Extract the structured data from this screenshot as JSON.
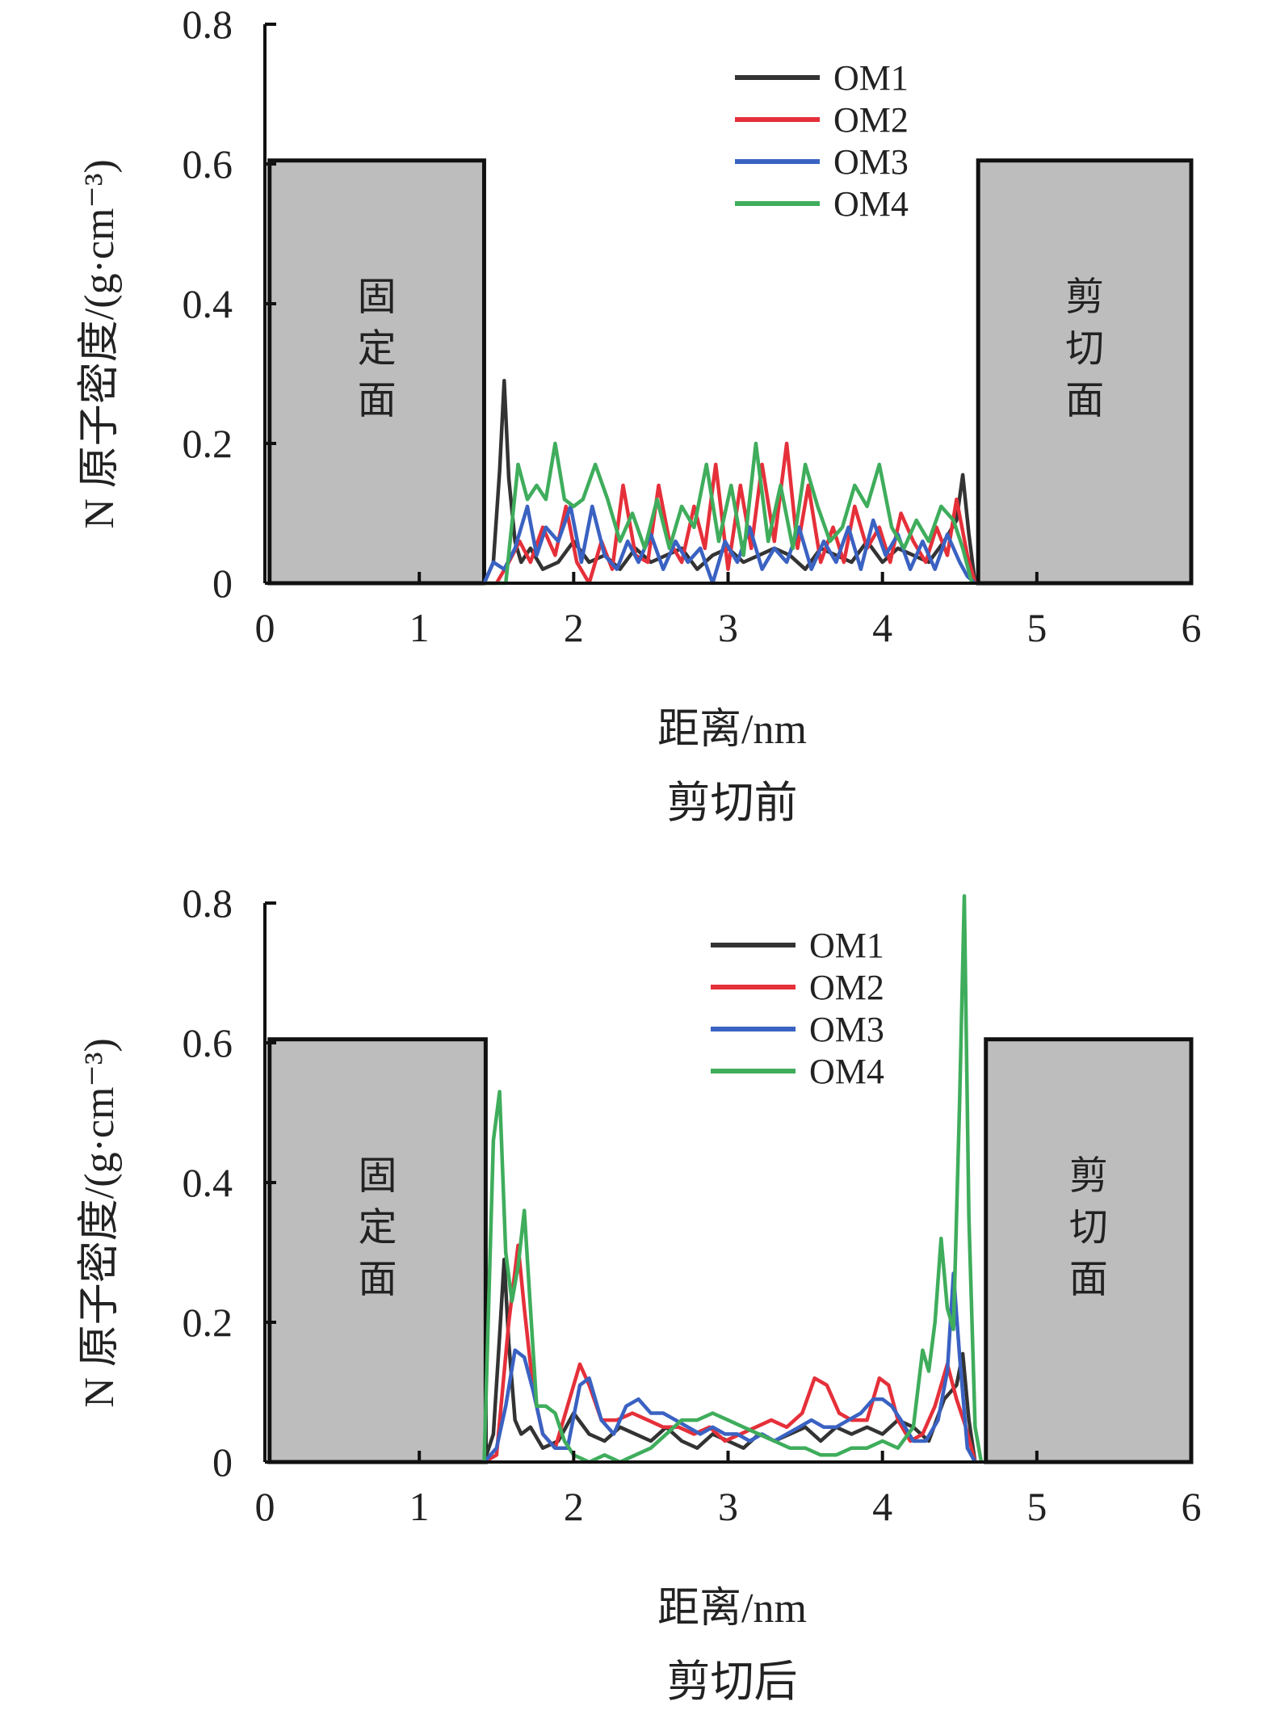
{
  "colors": {
    "OM1": "#333333",
    "OM2": "#e5303a",
    "OM3": "#3a62c2",
    "OM4": "#3fad5c",
    "region_fill": "#bdbdbd",
    "axis": "#111111"
  },
  "chart_data": [
    {
      "type": "line",
      "caption": "剪切前",
      "xlabel": "距离/nm",
      "ylabel": "N 原子密度/(g·cm⁻³)",
      "xlim": [
        0,
        6
      ],
      "ylim": [
        0,
        0.8
      ],
      "xticks": [
        "0",
        "1",
        "2",
        "3",
        "4",
        "5",
        "6"
      ],
      "yticks": [
        "0",
        "0.2",
        "0.4",
        "0.6",
        "0.8"
      ],
      "legend_position": "top-right",
      "regions": [
        {
          "label": "固定面",
          "x0": 0.03,
          "x1": 1.42,
          "top": 0.605
        },
        {
          "label": "剪切面",
          "x0": 4.62,
          "x1": 6.0,
          "top": 0.605
        }
      ],
      "series": [
        {
          "name": "OM1",
          "x": [
            1.42,
            1.48,
            1.52,
            1.55,
            1.58,
            1.62,
            1.66,
            1.72,
            1.8,
            1.9,
            2.0,
            2.1,
            2.2,
            2.3,
            2.4,
            2.5,
            2.6,
            2.7,
            2.8,
            2.9,
            3.0,
            3.1,
            3.2,
            3.3,
            3.4,
            3.5,
            3.6,
            3.7,
            3.8,
            3.9,
            4.0,
            4.1,
            4.2,
            4.3,
            4.4,
            4.48,
            4.52,
            4.56,
            4.6
          ],
          "y": [
            0,
            0.03,
            0.16,
            0.29,
            0.15,
            0.06,
            0.03,
            0.05,
            0.02,
            0.03,
            0.06,
            0.03,
            0.04,
            0.02,
            0.05,
            0.03,
            0.04,
            0.05,
            0.02,
            0.04,
            0.05,
            0.03,
            0.04,
            0.05,
            0.04,
            0.02,
            0.05,
            0.04,
            0.03,
            0.06,
            0.03,
            0.05,
            0.04,
            0.03,
            0.06,
            0.09,
            0.155,
            0.07,
            0
          ]
        },
        {
          "name": "OM2",
          "x": [
            1.42,
            1.5,
            1.58,
            1.65,
            1.72,
            1.8,
            1.88,
            1.95,
            2.02,
            2.1,
            2.18,
            2.25,
            2.32,
            2.4,
            2.48,
            2.55,
            2.62,
            2.7,
            2.78,
            2.85,
            2.92,
            3.0,
            3.08,
            3.15,
            3.22,
            3.3,
            3.38,
            3.45,
            3.52,
            3.6,
            3.68,
            3.75,
            3.82,
            3.9,
            3.98,
            4.05,
            4.12,
            4.2,
            4.28,
            4.35,
            4.42,
            4.48,
            4.55,
            4.6
          ],
          "y": [
            0,
            0,
            0.03,
            0.06,
            0.03,
            0.08,
            0.04,
            0.11,
            0.03,
            0.0,
            0.06,
            0.02,
            0.14,
            0.04,
            0.03,
            0.14,
            0.06,
            0.03,
            0.11,
            0.05,
            0.17,
            0.02,
            0.14,
            0.05,
            0.17,
            0.06,
            0.2,
            0.05,
            0.14,
            0.03,
            0.08,
            0.03,
            0.11,
            0.05,
            0.08,
            0.03,
            0.1,
            0.06,
            0.03,
            0.08,
            0.04,
            0.12,
            0.04,
            0
          ]
        },
        {
          "name": "OM3",
          "x": [
            1.42,
            1.48,
            1.55,
            1.62,
            1.7,
            1.76,
            1.82,
            1.9,
            1.98,
            2.05,
            2.12,
            2.2,
            2.28,
            2.35,
            2.42,
            2.5,
            2.58,
            2.66,
            2.74,
            2.82,
            2.9,
            2.98,
            3.06,
            3.14,
            3.22,
            3.3,
            3.38,
            3.46,
            3.54,
            3.62,
            3.7,
            3.78,
            3.86,
            3.94,
            4.02,
            4.1,
            4.18,
            4.26,
            4.34,
            4.42,
            4.5,
            4.55,
            4.6
          ],
          "y": [
            0,
            0.03,
            0.02,
            0.05,
            0.11,
            0.04,
            0.08,
            0.06,
            0.11,
            0.03,
            0.11,
            0.04,
            0.02,
            0.06,
            0.03,
            0.07,
            0.02,
            0.06,
            0.03,
            0.05,
            0.0,
            0.06,
            0.03,
            0.08,
            0.02,
            0.05,
            0.03,
            0.08,
            0.02,
            0.06,
            0.03,
            0.08,
            0.02,
            0.09,
            0.04,
            0.07,
            0.02,
            0.06,
            0.02,
            0.07,
            0.03,
            0.01,
            0
          ]
        },
        {
          "name": "OM4",
          "x": [
            1.42,
            1.56,
            1.64,
            1.7,
            1.76,
            1.82,
            1.88,
            1.94,
            2.0,
            2.06,
            2.14,
            2.22,
            2.3,
            2.38,
            2.46,
            2.54,
            2.62,
            2.7,
            2.78,
            2.86,
            2.94,
            3.02,
            3.1,
            3.18,
            3.26,
            3.34,
            3.42,
            3.5,
            3.58,
            3.66,
            3.74,
            3.82,
            3.9,
            3.98,
            4.06,
            4.14,
            4.22,
            4.3,
            4.38,
            4.46,
            4.52,
            4.58
          ],
          "y": [
            0,
            0.0,
            0.17,
            0.12,
            0.14,
            0.12,
            0.2,
            0.12,
            0.11,
            0.12,
            0.17,
            0.12,
            0.06,
            0.1,
            0.05,
            0.12,
            0.05,
            0.11,
            0.08,
            0.17,
            0.06,
            0.14,
            0.04,
            0.2,
            0.06,
            0.14,
            0.05,
            0.17,
            0.11,
            0.06,
            0.08,
            0.14,
            0.11,
            0.17,
            0.08,
            0.05,
            0.09,
            0.06,
            0.11,
            0.09,
            0.05,
            0
          ]
        }
      ]
    },
    {
      "type": "line",
      "caption": "剪切后",
      "xlabel": "距离/nm",
      "ylabel": "N 原子密度/(g·cm⁻³)",
      "xlim": [
        0,
        6
      ],
      "ylim": [
        0,
        0.8
      ],
      "xticks": [
        "0",
        "1",
        "2",
        "3",
        "4",
        "5",
        "6"
      ],
      "yticks": [
        "0",
        "0.2",
        "0.4",
        "0.6",
        "0.8"
      ],
      "legend_position": "top-right",
      "regions": [
        {
          "label": "固定面",
          "x0": 0.03,
          "x1": 1.43,
          "top": 0.605
        },
        {
          "label": "剪切面",
          "x0": 4.67,
          "x1": 6.0,
          "top": 0.605
        }
      ],
      "series": [
        {
          "name": "OM1",
          "x": [
            1.42,
            1.48,
            1.52,
            1.55,
            1.58,
            1.62,
            1.66,
            1.72,
            1.8,
            1.9,
            2.0,
            2.1,
            2.2,
            2.3,
            2.4,
            2.5,
            2.6,
            2.7,
            2.8,
            2.9,
            3.0,
            3.1,
            3.2,
            3.3,
            3.4,
            3.5,
            3.6,
            3.7,
            3.8,
            3.9,
            4.0,
            4.1,
            4.2,
            4.3,
            4.4,
            4.48,
            4.52,
            4.56,
            4.6
          ],
          "y": [
            0,
            0.04,
            0.18,
            0.29,
            0.17,
            0.06,
            0.04,
            0.05,
            0.02,
            0.03,
            0.07,
            0.04,
            0.03,
            0.05,
            0.04,
            0.03,
            0.05,
            0.03,
            0.02,
            0.04,
            0.03,
            0.02,
            0.04,
            0.03,
            0.04,
            0.05,
            0.03,
            0.05,
            0.04,
            0.05,
            0.04,
            0.06,
            0.05,
            0.03,
            0.09,
            0.11,
            0.155,
            0.06,
            0
          ]
        },
        {
          "name": "OM2",
          "x": [
            1.42,
            1.5,
            1.58,
            1.64,
            1.68,
            1.74,
            1.8,
            1.88,
            1.96,
            2.04,
            2.1,
            2.18,
            2.28,
            2.38,
            2.48,
            2.58,
            2.68,
            2.78,
            2.88,
            2.98,
            3.08,
            3.18,
            3.28,
            3.38,
            3.48,
            3.56,
            3.64,
            3.72,
            3.8,
            3.9,
            3.98,
            4.04,
            4.1,
            4.18,
            4.26,
            4.34,
            4.42,
            4.48,
            4.54,
            4.6
          ],
          "y": [
            0,
            0.01,
            0.2,
            0.31,
            0.22,
            0.1,
            0.04,
            0.02,
            0.08,
            0.14,
            0.11,
            0.06,
            0.06,
            0.07,
            0.06,
            0.05,
            0.05,
            0.04,
            0.05,
            0.03,
            0.04,
            0.05,
            0.06,
            0.05,
            0.07,
            0.12,
            0.11,
            0.07,
            0.06,
            0.06,
            0.12,
            0.11,
            0.06,
            0.03,
            0.04,
            0.08,
            0.14,
            0.09,
            0.05,
            0
          ]
        },
        {
          "name": "OM3",
          "x": [
            1.42,
            1.5,
            1.56,
            1.62,
            1.68,
            1.74,
            1.8,
            1.88,
            1.96,
            2.04,
            2.1,
            2.18,
            2.26,
            2.34,
            2.42,
            2.5,
            2.58,
            2.66,
            2.74,
            2.82,
            2.9,
            2.98,
            3.06,
            3.14,
            3.22,
            3.3,
            3.38,
            3.46,
            3.54,
            3.62,
            3.7,
            3.78,
            3.86,
            3.94,
            4.0,
            4.06,
            4.12,
            4.2,
            4.28,
            4.36,
            4.42,
            4.46,
            4.5,
            4.55,
            4.6
          ],
          "y": [
            0,
            0.02,
            0.08,
            0.16,
            0.15,
            0.1,
            0.04,
            0.02,
            0.02,
            0.11,
            0.12,
            0.06,
            0.04,
            0.08,
            0.09,
            0.07,
            0.07,
            0.06,
            0.05,
            0.04,
            0.05,
            0.04,
            0.04,
            0.03,
            0.04,
            0.03,
            0.04,
            0.05,
            0.06,
            0.05,
            0.05,
            0.06,
            0.07,
            0.09,
            0.09,
            0.08,
            0.06,
            0.03,
            0.03,
            0.06,
            0.13,
            0.27,
            0.15,
            0.02,
            0
          ]
        },
        {
          "name": "OM4",
          "x": [
            1.42,
            1.48,
            1.52,
            1.56,
            1.6,
            1.64,
            1.68,
            1.72,
            1.76,
            1.82,
            1.88,
            1.94,
            2.0,
            2.1,
            2.2,
            2.3,
            2.4,
            2.5,
            2.6,
            2.7,
            2.8,
            2.9,
            3.0,
            3.1,
            3.2,
            3.3,
            3.4,
            3.5,
            3.6,
            3.7,
            3.8,
            3.9,
            4.0,
            4.1,
            4.2,
            4.26,
            4.3,
            4.34,
            4.38,
            4.42,
            4.46,
            4.5,
            4.53,
            4.56,
            4.6,
            4.64
          ],
          "y": [
            0,
            0.46,
            0.53,
            0.3,
            0.23,
            0.28,
            0.36,
            0.22,
            0.08,
            0.08,
            0.07,
            0.03,
            0.01,
            0.0,
            0.01,
            0.0,
            0.01,
            0.02,
            0.04,
            0.06,
            0.06,
            0.07,
            0.06,
            0.05,
            0.04,
            0.03,
            0.02,
            0.02,
            0.01,
            0.01,
            0.02,
            0.02,
            0.03,
            0.02,
            0.05,
            0.16,
            0.13,
            0.2,
            0.32,
            0.22,
            0.19,
            0.52,
            0.81,
            0.35,
            0.05,
            0
          ]
        }
      ]
    }
  ]
}
